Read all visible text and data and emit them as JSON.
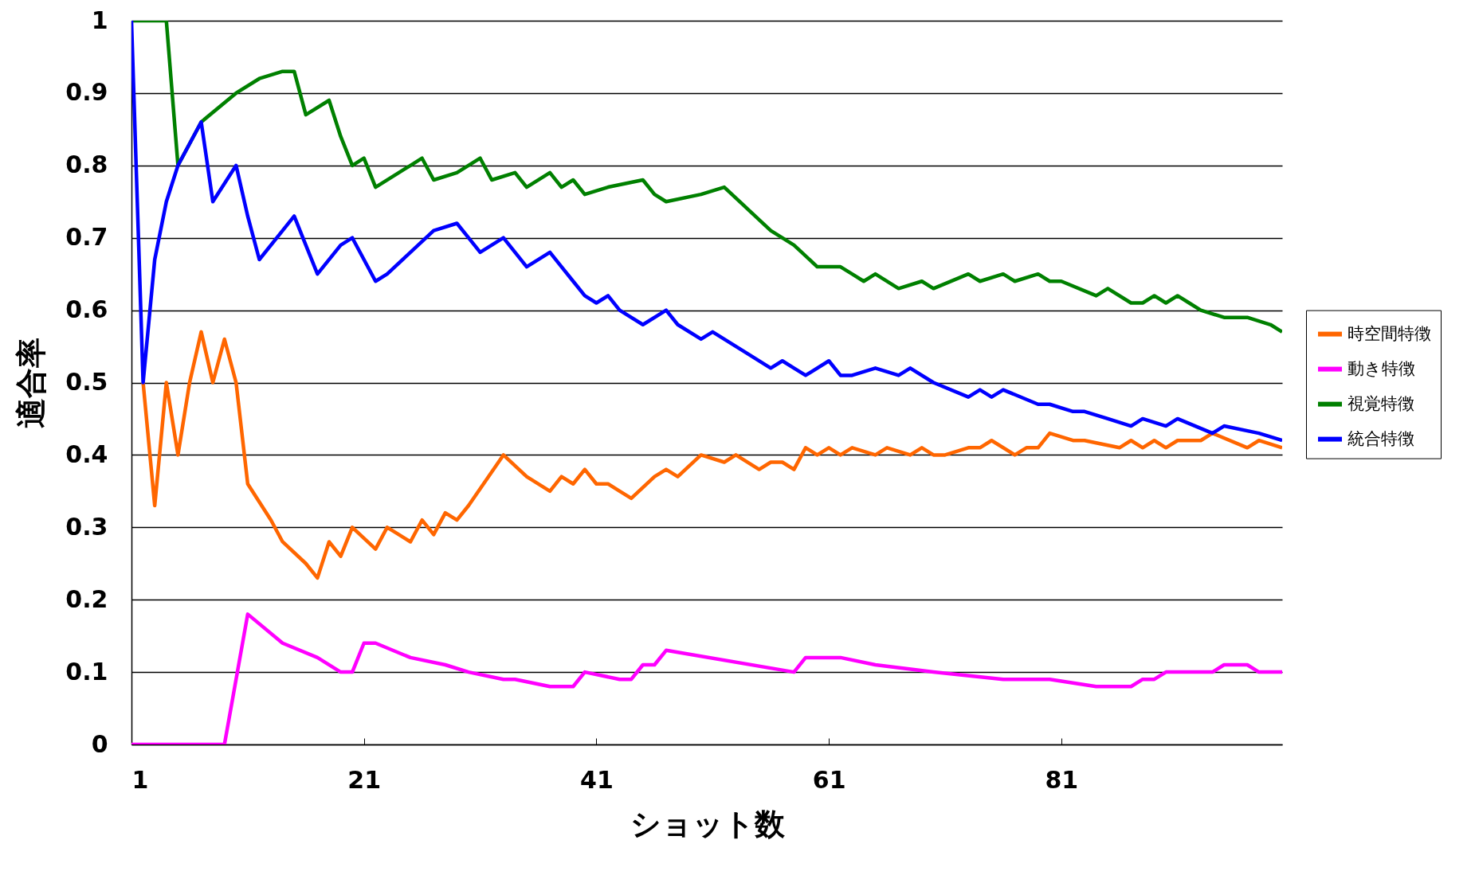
{
  "chart_data": {
    "type": "line",
    "xlabel": "ショット数",
    "ylabel": "適合率",
    "xlim": [
      1,
      100
    ],
    "xticks": [
      1,
      21,
      41,
      61,
      81
    ],
    "ylim": [
      0,
      1
    ],
    "yticks": [
      0,
      0.1,
      0.2,
      0.3,
      0.4,
      0.5,
      0.6,
      0.7,
      0.8,
      0.9,
      1
    ],
    "grid": "y",
    "legend": "right",
    "marker": "none",
    "line_style": "solid",
    "series": [
      {
        "name": "時空間特徴",
        "color": "#ff6600",
        "x": [
          2,
          3,
          4,
          5,
          6,
          7,
          8,
          9,
          10,
          11,
          13,
          14,
          16,
          17,
          18,
          19,
          20,
          22,
          23,
          24,
          25,
          26,
          27,
          28,
          29,
          30,
          33,
          35,
          37,
          38,
          39,
          40,
          41,
          42,
          43,
          44,
          46,
          47,
          48,
          50,
          52,
          53,
          55,
          56,
          57,
          58,
          59,
          60,
          61,
          62,
          63,
          65,
          66,
          68,
          69,
          70,
          71,
          73,
          74,
          75,
          77,
          78,
          79,
          80,
          82,
          83,
          86,
          87,
          88,
          89,
          90,
          91,
          93,
          94,
          97,
          98,
          100
        ],
        "values": [
          0.5,
          0.33,
          0.5,
          0.4,
          0.5,
          0.57,
          0.5,
          0.56,
          0.5,
          0.36,
          0.31,
          0.28,
          0.25,
          0.23,
          0.28,
          0.26,
          0.3,
          0.27,
          0.3,
          0.29,
          0.28,
          0.31,
          0.29,
          0.32,
          0.31,
          0.33,
          0.4,
          0.37,
          0.35,
          0.37,
          0.36,
          0.38,
          0.36,
          0.36,
          0.35,
          0.34,
          0.37,
          0.38,
          0.37,
          0.4,
          0.39,
          0.4,
          0.38,
          0.39,
          0.39,
          0.38,
          0.41,
          0.4,
          0.41,
          0.4,
          0.41,
          0.4,
          0.41,
          0.4,
          0.41,
          0.4,
          0.4,
          0.41,
          0.41,
          0.42,
          0.4,
          0.41,
          0.41,
          0.43,
          0.42,
          0.42,
          0.41,
          0.42,
          0.41,
          0.42,
          0.41,
          0.42,
          0.42,
          0.43,
          0.41,
          0.42,
          0.41
        ]
      },
      {
        "name": "動き特徴",
        "color": "#ff00ff",
        "x": [
          1,
          9,
          11,
          14,
          17,
          19,
          20,
          21,
          22,
          25,
          28,
          30,
          33,
          34,
          37,
          38,
          39,
          40,
          43,
          44,
          45,
          46,
          47,
          58,
          59,
          62,
          65,
          70,
          76,
          80,
          84,
          86,
          87,
          88,
          89,
          90,
          91,
          92,
          94,
          95,
          97,
          98,
          100
        ],
        "values": [
          0,
          0,
          0.18,
          0.14,
          0.12,
          0.1,
          0.1,
          0.14,
          0.14,
          0.12,
          0.11,
          0.1,
          0.09,
          0.09,
          0.08,
          0.08,
          0.08,
          0.1,
          0.09,
          0.09,
          0.11,
          0.11,
          0.13,
          0.1,
          0.12,
          0.12,
          0.11,
          0.1,
          0.09,
          0.09,
          0.08,
          0.08,
          0.08,
          0.09,
          0.09,
          0.1,
          0.1,
          0.1,
          0.1,
          0.11,
          0.11,
          0.1,
          0.1
        ]
      },
      {
        "name": "視覚特徴",
        "color": "#008000",
        "x": [
          1,
          4,
          5,
          7,
          10,
          12,
          14,
          15,
          16,
          18,
          19,
          20,
          21,
          22,
          24,
          25,
          26,
          27,
          29,
          31,
          32,
          34,
          35,
          37,
          38,
          39,
          40,
          42,
          45,
          46,
          47,
          50,
          52,
          54,
          56,
          58,
          60,
          61,
          62,
          63,
          64,
          65,
          67,
          69,
          70,
          73,
          74,
          76,
          77,
          79,
          80,
          81,
          84,
          85,
          87,
          88,
          89,
          90,
          91,
          92,
          93,
          95,
          96,
          97,
          99,
          100
        ],
        "values": [
          1.0,
          1.0,
          0.8,
          0.86,
          0.9,
          0.92,
          0.93,
          0.93,
          0.87,
          0.89,
          0.84,
          0.8,
          0.81,
          0.77,
          0.79,
          0.8,
          0.81,
          0.78,
          0.79,
          0.81,
          0.78,
          0.79,
          0.77,
          0.79,
          0.77,
          0.78,
          0.76,
          0.77,
          0.78,
          0.76,
          0.75,
          0.76,
          0.77,
          0.74,
          0.71,
          0.69,
          0.66,
          0.66,
          0.66,
          0.65,
          0.64,
          0.65,
          0.63,
          0.64,
          0.63,
          0.65,
          0.64,
          0.65,
          0.64,
          0.65,
          0.64,
          0.64,
          0.62,
          0.63,
          0.61,
          0.61,
          0.62,
          0.61,
          0.62,
          0.61,
          0.6,
          0.59,
          0.59,
          0.59,
          0.58,
          0.57
        ]
      },
      {
        "name": "統合特徴",
        "color": "#0000ff",
        "x": [
          1,
          2,
          3,
          4,
          5,
          6,
          7,
          8,
          10,
          11,
          12,
          14,
          15,
          16,
          17,
          19,
          20,
          21,
          22,
          23,
          25,
          27,
          29,
          30,
          31,
          33,
          34,
          35,
          37,
          38,
          39,
          40,
          41,
          42,
          43,
          45,
          47,
          48,
          50,
          51,
          54,
          56,
          57,
          58,
          59,
          61,
          62,
          63,
          65,
          67,
          68,
          70,
          73,
          74,
          75,
          76,
          79,
          80,
          82,
          83,
          85,
          87,
          88,
          90,
          91,
          94,
          95,
          98,
          100
        ],
        "values": [
          1.0,
          0.5,
          0.67,
          0.75,
          0.8,
          0.83,
          0.86,
          0.75,
          0.8,
          0.73,
          0.67,
          0.71,
          0.73,
          0.69,
          0.65,
          0.69,
          0.7,
          0.67,
          0.64,
          0.65,
          0.68,
          0.71,
          0.72,
          0.7,
          0.68,
          0.7,
          0.68,
          0.66,
          0.68,
          0.66,
          0.64,
          0.62,
          0.61,
          0.62,
          0.6,
          0.58,
          0.6,
          0.58,
          0.56,
          0.57,
          0.54,
          0.52,
          0.53,
          0.52,
          0.51,
          0.53,
          0.51,
          0.51,
          0.52,
          0.51,
          0.52,
          0.5,
          0.48,
          0.49,
          0.48,
          0.49,
          0.47,
          0.47,
          0.46,
          0.46,
          0.45,
          0.44,
          0.45,
          0.44,
          0.45,
          0.43,
          0.44,
          0.43,
          0.42
        ]
      }
    ]
  }
}
